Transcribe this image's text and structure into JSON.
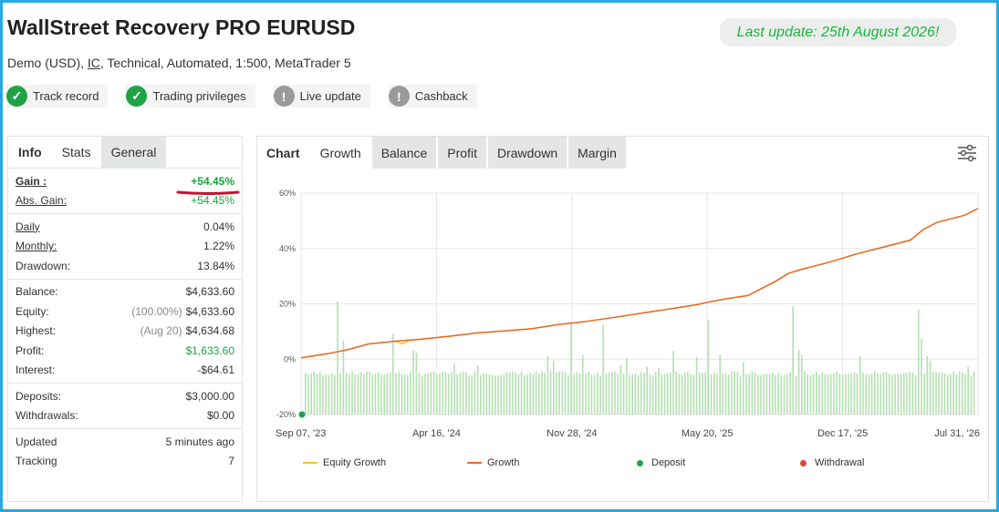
{
  "header": {
    "title": "WallStreet Recovery PRO EURUSD",
    "subtitle_prefix": "Demo (USD), ",
    "subtitle_link": "IC",
    "subtitle_suffix": ", Technical, Automated, 1:500, MetaTrader 5",
    "last_update": "Last update: 25th August 2026!"
  },
  "badges": [
    {
      "label": "Track record",
      "icon": "check-icon",
      "status": "verified"
    },
    {
      "label": "Trading privileges",
      "icon": "check-icon",
      "status": "verified"
    },
    {
      "label": "Live update",
      "icon": "exclamation-icon",
      "status": "unverified"
    },
    {
      "label": "Cashback",
      "icon": "exclamation-icon",
      "status": "unverified"
    }
  ],
  "left_tabs": [
    "Info",
    "Stats",
    "General"
  ],
  "stats": {
    "gain_label": "Gain :",
    "gain_value": "+54.45%",
    "abs_gain_label": "Abs. Gain:",
    "abs_gain_value": "+54.45%",
    "daily_label": "Daily",
    "daily_value": "0.04%",
    "monthly_label": "Monthly:",
    "monthly_value": "1.22%",
    "drawdown_label": "Drawdown:",
    "drawdown_value": "13.84%",
    "balance_label": "Balance:",
    "balance_value": "$4,633.60",
    "equity_label": "Equity:",
    "equity_note": "(100.00%)",
    "equity_value": "$4,633.60",
    "highest_label": "Highest:",
    "highest_note": "(Aug 20)",
    "highest_value": "$4,634.68",
    "profit_label": "Profit:",
    "profit_value": "$1,633.60",
    "interest_label": "Interest:",
    "interest_value": "-$64.61",
    "deposits_label": "Deposits:",
    "deposits_value": "$3,000.00",
    "withdrawals_label": "Withdrawals:",
    "withdrawals_value": "$0.00",
    "updated_label": "Updated",
    "updated_value": "5 minutes ago",
    "tracking_label": "Tracking",
    "tracking_value": "7"
  },
  "chart_tabs": [
    "Chart",
    "Growth",
    "Balance",
    "Profit",
    "Drawdown",
    "Margin"
  ],
  "colors": {
    "growth": "#e8692c",
    "equity": "#f0c419",
    "bars": "#b5dfb2",
    "deposit": "#1fa346",
    "withdrawal": "#e8403c",
    "accent": "#29a9e0"
  },
  "chart_data": {
    "type": "line",
    "y_ticks": [
      "60%",
      "40%",
      "20%",
      "0%",
      "-20%"
    ],
    "ylim": [
      -20,
      60
    ],
    "x_ticks": [
      "Sep 07, '23",
      "Apr 16, '24",
      "Nov 28, '24",
      "May 20, '25",
      "Dec 17, '25",
      "Jul 31, '26"
    ],
    "series": [
      {
        "name": "Growth",
        "x": [
          0,
          4,
          7,
          10,
          14,
          18,
          22,
          26,
          30,
          34,
          38,
          42,
          46,
          50,
          54,
          58,
          62,
          66,
          70,
          72,
          74,
          78,
          82,
          86,
          90,
          92,
          94,
          98,
          100
        ],
        "y": [
          0.5,
          2,
          3.5,
          5.5,
          6.5,
          7.3,
          8.3,
          9.5,
          10.2,
          11,
          12.5,
          13.6,
          15,
          16.5,
          18,
          19.5,
          21.5,
          23,
          28,
          31,
          32.5,
          35,
          38,
          40.5,
          43,
          47,
          49.5,
          52,
          54.45
        ]
      },
      {
        "name": "Equity Growth",
        "x": [
          0,
          4,
          7,
          10,
          14,
          15,
          16,
          18,
          22,
          26,
          30,
          34,
          38,
          42,
          46,
          50,
          54,
          58,
          62,
          66,
          70,
          72,
          74,
          78,
          82,
          86,
          90,
          92,
          94,
          98,
          100
        ],
        "y": [
          0.5,
          2,
          3.5,
          5.5,
          6.5,
          5.5,
          6.8,
          7.3,
          8.3,
          9.5,
          10.2,
          11,
          12.5,
          13.6,
          15,
          16.5,
          18,
          19.5,
          21.5,
          23,
          28,
          31,
          32.5,
          35,
          38,
          40.5,
          43,
          47,
          49.5,
          52,
          54.45
        ]
      }
    ],
    "legend": [
      "Equity Growth",
      "Growth",
      "Deposit",
      "Withdrawal"
    ]
  }
}
